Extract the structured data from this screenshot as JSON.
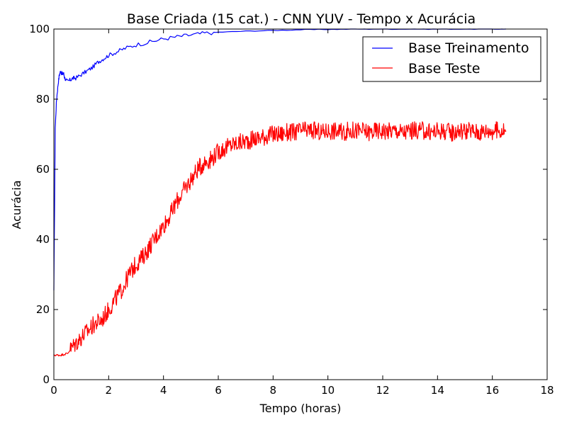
{
  "chart_data": {
    "type": "line",
    "title": "Base Criada (15 cat.) - CNN YUV - Tempo x Acurácia",
    "xlabel": "Tempo (horas)",
    "ylabel": "Acurácia",
    "xlim": [
      0,
      18
    ],
    "ylim": [
      0,
      100
    ],
    "xticks": [
      0,
      2,
      4,
      6,
      8,
      10,
      12,
      14,
      16,
      18
    ],
    "yticks": [
      0,
      20,
      40,
      60,
      80,
      100
    ],
    "grid": false,
    "legend_position": "top-right",
    "series": [
      {
        "name": "Base Treinamento",
        "color": "#0000ff",
        "x": [
          0,
          0.05,
          0.1,
          0.15,
          0.2,
          0.25,
          0.3,
          0.35,
          0.4,
          0.5,
          0.6,
          0.7,
          0.8,
          1.0,
          1.2,
          1.4,
          1.6,
          1.8,
          2.0,
          2.3,
          2.6,
          3.0,
          3.5,
          4.0,
          4.5,
          5.0,
          5.5,
          6.0,
          7.0,
          8.0,
          9.0,
          10.0,
          11.0,
          12.0,
          13.0,
          14.0,
          15.0,
          16.0,
          16.5
        ],
        "y": [
          25,
          72,
          80,
          84,
          87,
          88,
          87,
          87.5,
          86,
          85,
          85.5,
          86,
          86,
          87,
          88,
          89,
          90.5,
          91.5,
          92.5,
          93.5,
          94.5,
          95.5,
          96.3,
          97.2,
          97.8,
          98.3,
          98.8,
          99.1,
          99.4,
          99.6,
          99.8,
          99.9,
          100,
          100,
          100,
          100,
          100,
          100,
          100
        ]
      },
      {
        "name": "Base Teste",
        "color": "#ff0000",
        "x": [
          0,
          0.25,
          0.5,
          0.75,
          1.0,
          1.25,
          1.5,
          1.75,
          2.0,
          2.25,
          2.5,
          2.75,
          3.0,
          3.25,
          3.5,
          3.75,
          4.0,
          4.25,
          4.5,
          4.75,
          5.0,
          5.25,
          5.5,
          5.75,
          6.0,
          6.25,
          6.5,
          6.75,
          7.0,
          7.25,
          7.5,
          7.75,
          8.0,
          8.25,
          8.5,
          8.75,
          9.0,
          9.25,
          9.5,
          9.75,
          10.0,
          10.25,
          10.5,
          10.75,
          11.0,
          11.25,
          11.5,
          11.75,
          12.0,
          12.25,
          12.5,
          12.75,
          13.0,
          13.25,
          13.5,
          13.75,
          14.0,
          14.25,
          14.5,
          14.75,
          15.0,
          15.25,
          15.5,
          15.75,
          16.0,
          16.25,
          16.5
        ],
        "y": [
          7,
          7,
          7.5,
          10,
          12,
          14,
          16,
          17,
          20,
          23,
          26,
          30,
          33,
          35,
          38,
          41,
          44,
          47,
          51,
          54,
          57,
          60,
          62,
          63,
          65,
          66,
          67,
          67.5,
          68,
          68.5,
          69,
          69.5,
          70,
          70,
          70.5,
          70.5,
          71,
          71,
          71,
          70.5,
          71,
          71,
          70.5,
          71,
          71,
          71,
          70.5,
          71,
          71,
          71,
          71,
          70.5,
          71,
          71,
          71,
          70.5,
          71,
          71,
          70.5,
          71,
          71,
          71,
          70.5,
          71,
          71,
          71,
          71
        ]
      }
    ]
  }
}
